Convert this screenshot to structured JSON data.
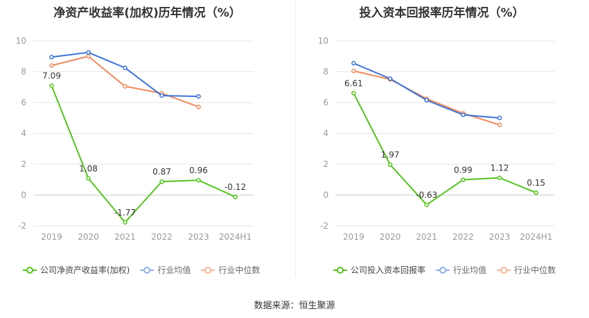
{
  "source_label": "数据来源：恒生聚源",
  "colors": {
    "company": "#52c41a",
    "average": "#3a72d8",
    "median": "#f08a5d",
    "grid": "#e6e6e6",
    "axis_text": "#999999"
  },
  "chart_data": [
    {
      "type": "line",
      "title": "净资产收益率(加权)历年情况（%）",
      "categories": [
        "2019",
        "2020",
        "2021",
        "2022",
        "2023",
        "2024H1"
      ],
      "ylim": [
        -2,
        10
      ],
      "yticks": [
        -2,
        0,
        2,
        4,
        6,
        8,
        10
      ],
      "series": [
        {
          "name": "公司净资产收益率(加权)",
          "key": "company",
          "values": [
            7.09,
            1.08,
            -1.77,
            0.87,
            0.96,
            -0.12
          ],
          "labels": [
            "7.09",
            "1.08",
            "-1.77",
            "0.87",
            "0.96",
            "-0.12"
          ]
        },
        {
          "name": "行业均值",
          "key": "average",
          "values": [
            8.95,
            9.25,
            8.25,
            6.45,
            6.4,
            null
          ]
        },
        {
          "name": "行业中位数",
          "key": "median",
          "values": [
            8.4,
            9.0,
            7.05,
            6.6,
            5.72,
            null
          ]
        }
      ]
    },
    {
      "type": "line",
      "title": "投入资本回报率历年情况（%）",
      "categories": [
        "2019",
        "2020",
        "2021",
        "2022",
        "2023",
        "2024H1"
      ],
      "ylim": [
        -2,
        10
      ],
      "yticks": [
        -2,
        0,
        2,
        4,
        6,
        8,
        10
      ],
      "series": [
        {
          "name": "公司投入资本回报率",
          "key": "company",
          "values": [
            6.61,
            1.97,
            -0.63,
            0.99,
            1.12,
            0.15
          ],
          "labels": [
            "6.61",
            "1.97",
            "-0.63",
            "0.99",
            "1.12",
            "0.15"
          ]
        },
        {
          "name": "行业均值",
          "key": "average",
          "values": [
            8.55,
            7.55,
            6.15,
            5.2,
            5.0,
            null
          ]
        },
        {
          "name": "行业中位数",
          "key": "median",
          "values": [
            8.05,
            7.5,
            6.25,
            5.3,
            4.55,
            null
          ]
        }
      ]
    }
  ]
}
